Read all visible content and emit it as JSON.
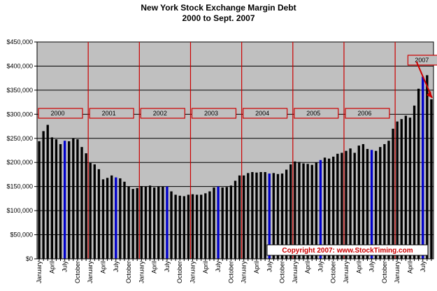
{
  "chart_data": {
    "type": "bar",
    "title": "New York Stock Exchange Margin Debt",
    "subtitle": "2000 to Sept. 2007",
    "xlabel": "",
    "ylabel": "",
    "ylim": [
      0,
      450000
    ],
    "yticks": [
      "$0",
      "$50,000",
      "$100,000",
      "$150,000",
      "$200,000",
      "$250,000",
      "$300,000",
      "$350,000",
      "$400,000",
      "$450,000"
    ],
    "grid": true,
    "plot_background": "#c0c0c0",
    "bar_color": "#000000",
    "highlight_color": "#0000cc",
    "divider_color": "#cc0000",
    "x_tick_months": [
      "January",
      "April",
      "July",
      "October"
    ],
    "years": [
      {
        "label": "2000",
        "values": [
          244000,
          265000,
          278000,
          252000,
          248000,
          238000,
          245000,
          244000,
          250000,
          248000,
          232000,
          219000
        ]
      },
      {
        "label": "2001",
        "values": [
          199000,
          196000,
          186000,
          165000,
          168000,
          173000,
          169000,
          167000,
          160000,
          150000,
          145000,
          147000
        ]
      },
      {
        "label": "2002",
        "values": [
          151000,
          150000,
          152000,
          148000,
          150000,
          150000,
          150000,
          140000,
          133000,
          131000,
          130000,
          133000
        ]
      },
      {
        "label": "2003",
        "values": [
          134000,
          133000,
          133000,
          136000,
          140000,
          148000,
          150000,
          148000,
          149000,
          152000,
          162000,
          173000
        ]
      },
      {
        "label": "2004",
        "values": [
          173000,
          178000,
          180000,
          179000,
          180000,
          180000,
          177000,
          178000,
          176000,
          177000,
          185000,
          196000
        ]
      },
      {
        "label": "2005",
        "values": [
          202000,
          201000,
          198000,
          197000,
          195000,
          200000,
          205000,
          210000,
          208000,
          212000,
          218000,
          220000
        ]
      },
      {
        "label": "2006",
        "values": [
          224000,
          229000,
          220000,
          235000,
          238000,
          228000,
          226000,
          224000,
          232000,
          238000,
          245000,
          270000
        ]
      },
      {
        "label": "2007",
        "values": [
          285000,
          290000,
          297000,
          293000,
          318000,
          353000,
          378000,
          381000,
          331000
        ]
      }
    ],
    "highlighted_months": [
      "July"
    ],
    "annotation": "Copyright 2007: www.StockTiming.com"
  }
}
